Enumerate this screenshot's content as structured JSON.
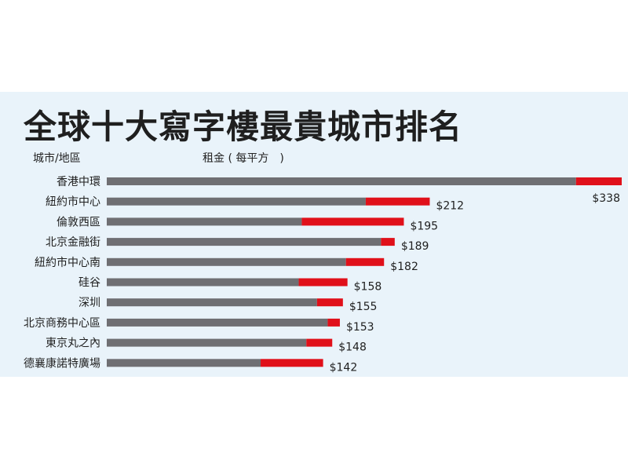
{
  "title": "全球十大寫字樓最貴城市排名",
  "headers": {
    "city": "城市/地區",
    "rent": "租金 ( 每平方　)"
  },
  "colors": {
    "bar_base": "#6f6f73",
    "bar_accent": "#e0101a",
    "panel": "#e9f3fa",
    "text": "#1f1f1f"
  },
  "chart_data": {
    "type": "bar",
    "orientation": "horizontal",
    "stacked": true,
    "title": "全球十大寫字樓最貴城市排名",
    "xlabel": "租金 ( 每平方　)",
    "ylabel": "城市/地區",
    "xlim": [
      0,
      338
    ],
    "grid": false,
    "legend": "none",
    "categories": [
      "香港中環",
      "紐約市中心",
      "倫敦西區",
      "北京金融街",
      "紐約市中心南",
      "硅谷",
      "深圳",
      "北京商務中心區",
      "東京丸之內",
      "德襄康諾特廣場"
    ],
    "labels": [
      "$338",
      "$212",
      "$195",
      "$189",
      "$182",
      "$158",
      "$155",
      "$153",
      "$148",
      "$142"
    ],
    "values": [
      338,
      212,
      195,
      189,
      182,
      158,
      155,
      153,
      148,
      142
    ],
    "series": [
      {
        "values": [
          308,
          170,
          128,
          180,
          157,
          126,
          138,
          145,
          131,
          101
        ]
      },
      {
        "values": [
          30,
          42,
          67,
          9,
          25,
          32,
          17,
          8,
          17,
          41
        ]
      }
    ]
  }
}
